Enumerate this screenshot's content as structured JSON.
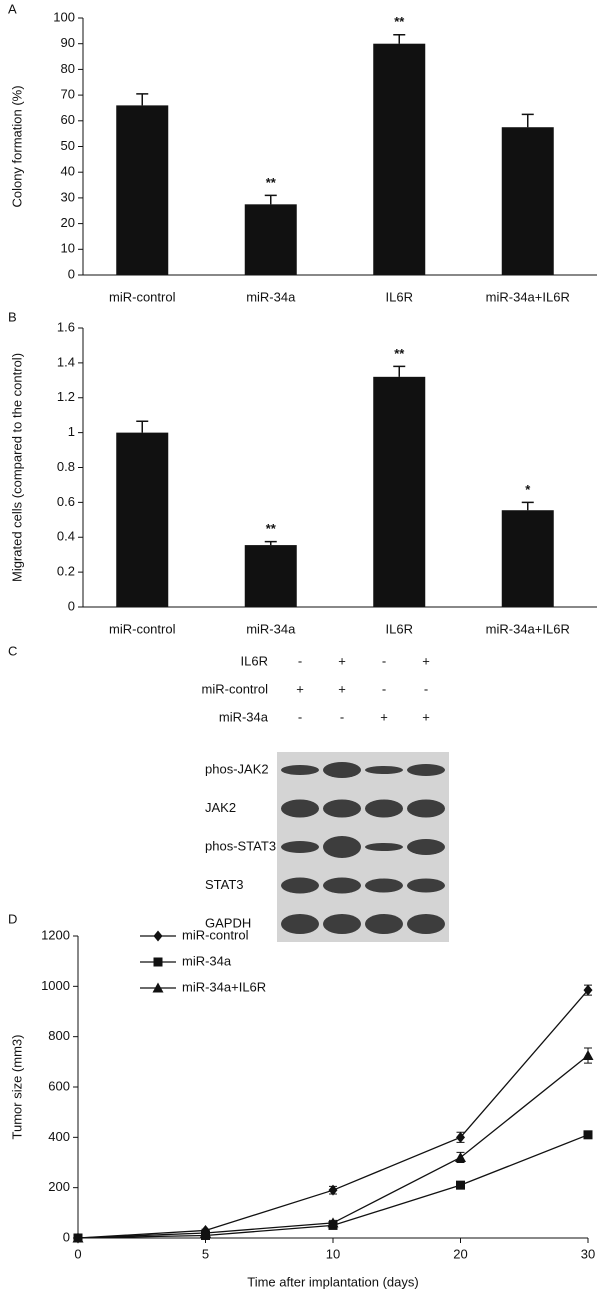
{
  "chart_data": [
    {
      "type": "bar",
      "panel_label": "A",
      "ylabel": "Colony formation (%)",
      "categories": [
        "miR-control",
        "miR-34a",
        "IL6R",
        "miR-34a+IL6R"
      ],
      "values": [
        66,
        27.5,
        90,
        57.5
      ],
      "errors": [
        4.5,
        3.5,
        3.5,
        5
      ],
      "annotations": [
        null,
        "**",
        "**",
        null
      ],
      "color": "#111111",
      "ylim": [
        0,
        100
      ],
      "yticks": [
        0,
        10,
        20,
        30,
        40,
        50,
        60,
        70,
        80,
        90,
        100
      ]
    },
    {
      "type": "bar",
      "panel_label": "B",
      "ylabel": "Migrated cells (compared to the control)",
      "categories": [
        "miR-control",
        "miR-34a",
        "IL6R",
        "miR-34a+IL6R"
      ],
      "values": [
        1.0,
        0.355,
        1.32,
        0.555
      ],
      "errors": [
        0.065,
        0.02,
        0.06,
        0.045
      ],
      "annotations": [
        null,
        "**",
        "**",
        "*"
      ],
      "color": "#111111",
      "ylim": [
        0,
        1.6
      ],
      "yticks": [
        0,
        0.2,
        0.4,
        0.6,
        0.8,
        1,
        1.2,
        1.4,
        1.6
      ]
    },
    {
      "type": "line",
      "panel_label": "D",
      "xlabel": "Time after implantation (days)",
      "ylabel": "Tumor size (mm3)",
      "categories": [
        "0",
        "5",
        "10",
        "20",
        "30"
      ],
      "series": [
        {
          "name": "miR-control",
          "color": "#111111",
          "marker": "diamond",
          "values": [
            0,
            30,
            190,
            400,
            985
          ],
          "errors": [
            0,
            5,
            15,
            20,
            20
          ]
        },
        {
          "name": "miR-34a",
          "color": "#111111",
          "marker": "square",
          "values": [
            0,
            10,
            50,
            210,
            410
          ],
          "errors": [
            0,
            3,
            8,
            10,
            12
          ]
        },
        {
          "name": "miR-34a+IL6R",
          "color": "#111111",
          "marker": "triangle",
          "values": [
            0,
            20,
            60,
            320,
            725
          ],
          "errors": [
            0,
            4,
            10,
            20,
            30
          ]
        }
      ],
      "ylim": [
        0,
        1200
      ],
      "yticks": [
        0,
        200,
        400,
        600,
        800,
        1000,
        1200
      ],
      "legend": "upper left"
    }
  ],
  "blot": {
    "panel_label": "C",
    "conditions": [
      {
        "label": "IL6R",
        "signs": [
          "-",
          "+",
          "-",
          "+"
        ]
      },
      {
        "label": "miR-control",
        "signs": [
          "+",
          "+",
          "-",
          "-"
        ]
      },
      {
        "label": "miR-34a",
        "signs": [
          "-",
          "-",
          "+",
          "+"
        ]
      }
    ],
    "bands": [
      "phos-JAK2",
      "JAK2",
      "phos-STAT3",
      "STAT3",
      "GAPDH"
    ]
  }
}
